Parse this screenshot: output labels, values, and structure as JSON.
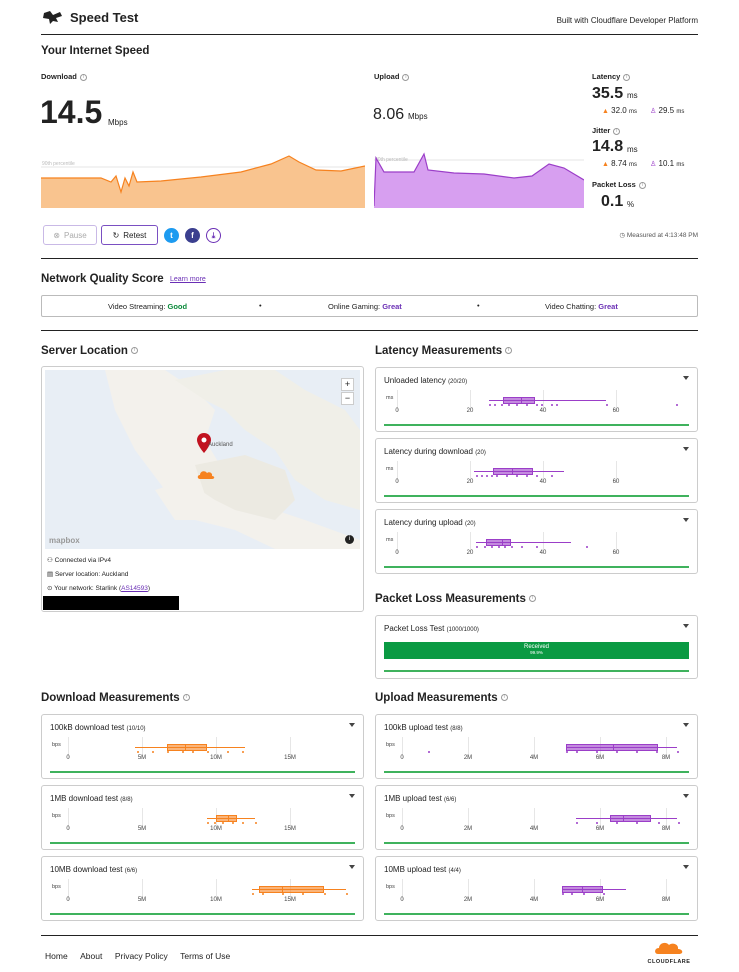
{
  "header": {
    "title": "Speed Test",
    "built_with": "Built with Cloudflare Developer Platform"
  },
  "speed": {
    "section_title": "Your Internet Speed",
    "download": {
      "label": "Download",
      "value": "14.5",
      "unit": "Mbps",
      "percentile_label": "90th percentile"
    },
    "upload": {
      "label": "Upload",
      "value": "8.06",
      "unit": "Mbps",
      "percentile_label": "90th percentile"
    },
    "latency": {
      "label": "Latency",
      "value": "35.5",
      "unit": "ms",
      "down": "32.0",
      "down_unit": "ms",
      "up": "29.5",
      "up_unit": "ms"
    },
    "jitter": {
      "label": "Jitter",
      "value": "14.8",
      "unit": "ms",
      "down": "8.74",
      "down_unit": "ms",
      "up": "10.1",
      "up_unit": "ms"
    },
    "packet_loss": {
      "label": "Packet Loss",
      "value": "0.1",
      "unit": "%"
    },
    "pause_label": "Pause",
    "retest_label": "Retest",
    "measured_at": "Measured at 4:13:48 PM"
  },
  "quality": {
    "title": "Network Quality Score",
    "learn_more": "Learn more",
    "items": [
      {
        "label": "Video Streaming:",
        "value": "Good"
      },
      {
        "label": "Online Gaming:",
        "value": "Great"
      },
      {
        "label": "Video Chatting:",
        "value": "Great"
      }
    ],
    "colors": {
      "good": "#0a8a3a",
      "great": "#6a2fb5"
    }
  },
  "server": {
    "title": "Server Location",
    "map_city": "Auckland",
    "mapbox": "mapbox",
    "connected": "Connected via IPv4",
    "location": "Server location: Auckland",
    "network_prefix": "Your network: Starlink (",
    "asn": "AS14593",
    "network_suffix": ")",
    "zoom_in": "+",
    "zoom_out": "−",
    "info_glyph": "i"
  },
  "latency_meas": {
    "title": "Latency Measurements",
    "cards": [
      {
        "title": "Unloaded latency",
        "count": "(20/20)",
        "unit": "ms",
        "ticks": [
          "0",
          "20",
          "40",
          "60"
        ]
      },
      {
        "title": "Latency during download",
        "count": "(20)",
        "unit": "ms",
        "ticks": [
          "0",
          "20",
          "40",
          "60"
        ]
      },
      {
        "title": "Latency during upload",
        "count": "(20)",
        "unit": "ms",
        "ticks": [
          "0",
          "20",
          "40",
          "60"
        ]
      }
    ]
  },
  "packet_loss_meas": {
    "title": "Packet Loss Measurements",
    "card_title": "Packet Loss Test",
    "count": "(1000/1000)",
    "bar_label": "Received",
    "bar_pct": "99.9%",
    "received_fraction": 0.999
  },
  "download_meas": {
    "title": "Download Measurements",
    "cards": [
      {
        "title": "100kB download test",
        "count": "(10/10)",
        "unit": "bps",
        "ticks": [
          "0",
          "5M",
          "10M",
          "15M"
        ]
      },
      {
        "title": "1MB download test",
        "count": "(8/8)",
        "unit": "bps",
        "ticks": [
          "0",
          "5M",
          "10M",
          "15M"
        ]
      },
      {
        "title": "10MB download test",
        "count": "(6/6)",
        "unit": "bps",
        "ticks": [
          "0",
          "5M",
          "10M",
          "15M"
        ]
      }
    ]
  },
  "upload_meas": {
    "title": "Upload Measurements",
    "cards": [
      {
        "title": "100kB upload test",
        "count": "(8/8)",
        "unit": "bps",
        "ticks": [
          "0",
          "2M",
          "4M",
          "6M",
          "8M"
        ]
      },
      {
        "title": "1MB upload test",
        "count": "(6/6)",
        "unit": "bps",
        "ticks": [
          "0",
          "2M",
          "4M",
          "6M",
          "8M"
        ]
      },
      {
        "title": "10MB upload test",
        "count": "(4/4)",
        "unit": "bps",
        "ticks": [
          "0",
          "2M",
          "4M",
          "6M",
          "8M"
        ]
      }
    ]
  },
  "footer": {
    "links": [
      "Home",
      "About",
      "Privacy Policy",
      "Terms of Use"
    ],
    "brand": "CLOUDFLARE"
  },
  "colors": {
    "download": "#f6821f",
    "upload": "#9b3ec8",
    "green": "#3fb25d",
    "pl_green": "#0a9a43"
  }
}
